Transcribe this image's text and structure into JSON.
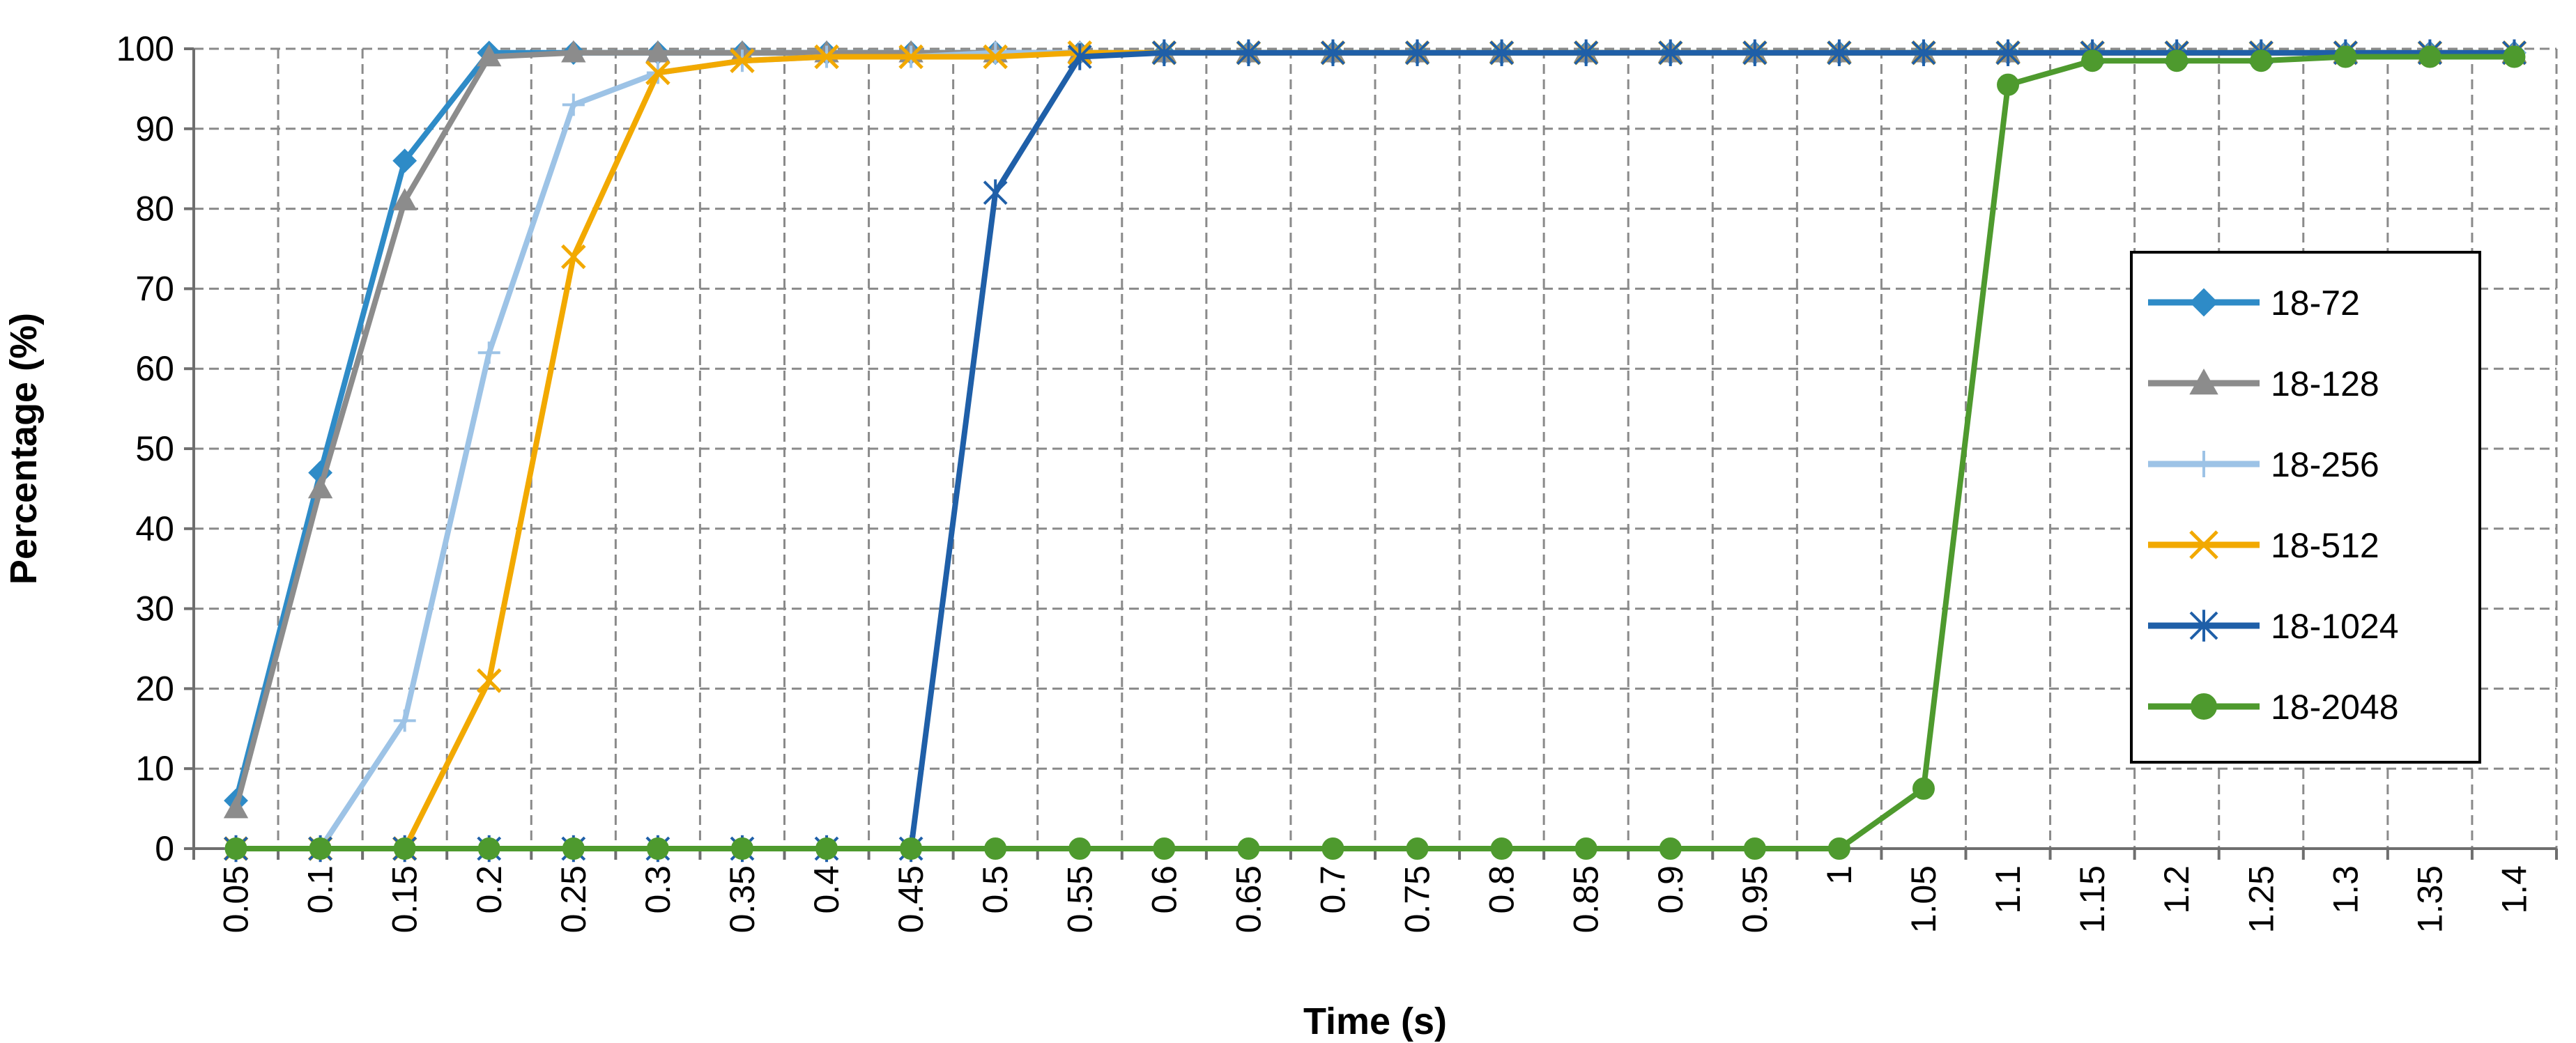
{
  "chart_data": {
    "type": "line",
    "title": "",
    "xlabel": "Time (s)",
    "ylabel": "Percentage (%)",
    "ylim": [
      0,
      100
    ],
    "y_ticks": [
      0,
      10,
      20,
      30,
      40,
      50,
      60,
      70,
      80,
      90,
      100
    ],
    "grid": true,
    "legend_position": "right",
    "categories": [
      "0.05",
      "0.1",
      "0.15",
      "0.2",
      "0.25",
      "0.3",
      "0.35",
      "0.4",
      "0.45",
      "0.5",
      "0.55",
      "0.6",
      "0.65",
      "0.7",
      "0.75",
      "0.8",
      "0.85",
      "0.9",
      "0.95",
      "1",
      "1.05",
      "1.1",
      "1.15",
      "1.2",
      "1.25",
      "1.3",
      "1.35",
      "1.4"
    ],
    "series": [
      {
        "name": "18-72",
        "color": "#2E8BC7",
        "marker": "diamond",
        "values": [
          6,
          47,
          86,
          99.5,
          99.5,
          99.5,
          99.5,
          99.5,
          99.5,
          99.5,
          99.5,
          99.5,
          99.5,
          99.5,
          99.5,
          99.5,
          99.5,
          99.5,
          99.5,
          99.5,
          99.5,
          99.5,
          99.5,
          99.5,
          99.5,
          99.5,
          99.5,
          99.5
        ]
      },
      {
        "name": "18-128",
        "color": "#8C8C8C",
        "marker": "triangle",
        "values": [
          5,
          45,
          81,
          99,
          99.5,
          99.5,
          99.5,
          99.5,
          99.5,
          99.5,
          99.5,
          99.5,
          99.5,
          99.5,
          99.5,
          99.5,
          99.5,
          99.5,
          99.5,
          99.5,
          99.5,
          99.5,
          99.5,
          99.5,
          99.5,
          99.5,
          99.5,
          99.5
        ]
      },
      {
        "name": "18-256",
        "color": "#9DC3E6",
        "marker": "plus",
        "values": [
          0,
          0,
          16,
          62,
          93,
          97,
          98.5,
          99,
          99,
          99.5,
          99.5,
          99.5,
          99.5,
          99.5,
          99.5,
          99.5,
          99.5,
          99.5,
          99.5,
          99.5,
          99.5,
          99.5,
          99.5,
          99.5,
          99.5,
          99.5,
          99.5,
          99.5
        ]
      },
      {
        "name": "18-512",
        "color": "#F2A900",
        "marker": "x",
        "values": [
          0,
          0,
          0,
          21,
          74,
          97,
          98.5,
          99,
          99,
          99,
          99.5,
          99.5,
          99.5,
          99.5,
          99.5,
          99.5,
          99.5,
          99.5,
          99.5,
          99.5,
          99.5,
          99.5,
          99.5,
          99.5,
          99.5,
          99.5,
          99.5,
          99.5
        ]
      },
      {
        "name": "18-1024",
        "color": "#1F5FA8",
        "marker": "asterisk",
        "values": [
          0,
          0,
          0,
          0,
          0,
          0,
          0,
          0,
          0,
          82,
          99,
          99.5,
          99.5,
          99.5,
          99.5,
          99.5,
          99.5,
          99.5,
          99.5,
          99.5,
          99.5,
          99.5,
          99.5,
          99.5,
          99.5,
          99.5,
          99.5,
          99.5
        ]
      },
      {
        "name": "18-2048",
        "color": "#4E9A2E",
        "marker": "circle",
        "values": [
          0,
          0,
          0,
          0,
          0,
          0,
          0,
          0,
          0,
          0,
          0,
          0,
          0,
          0,
          0,
          0,
          0,
          0,
          0,
          0,
          7.5,
          95.5,
          98.5,
          98.5,
          98.5,
          99,
          99,
          99
        ]
      }
    ]
  }
}
